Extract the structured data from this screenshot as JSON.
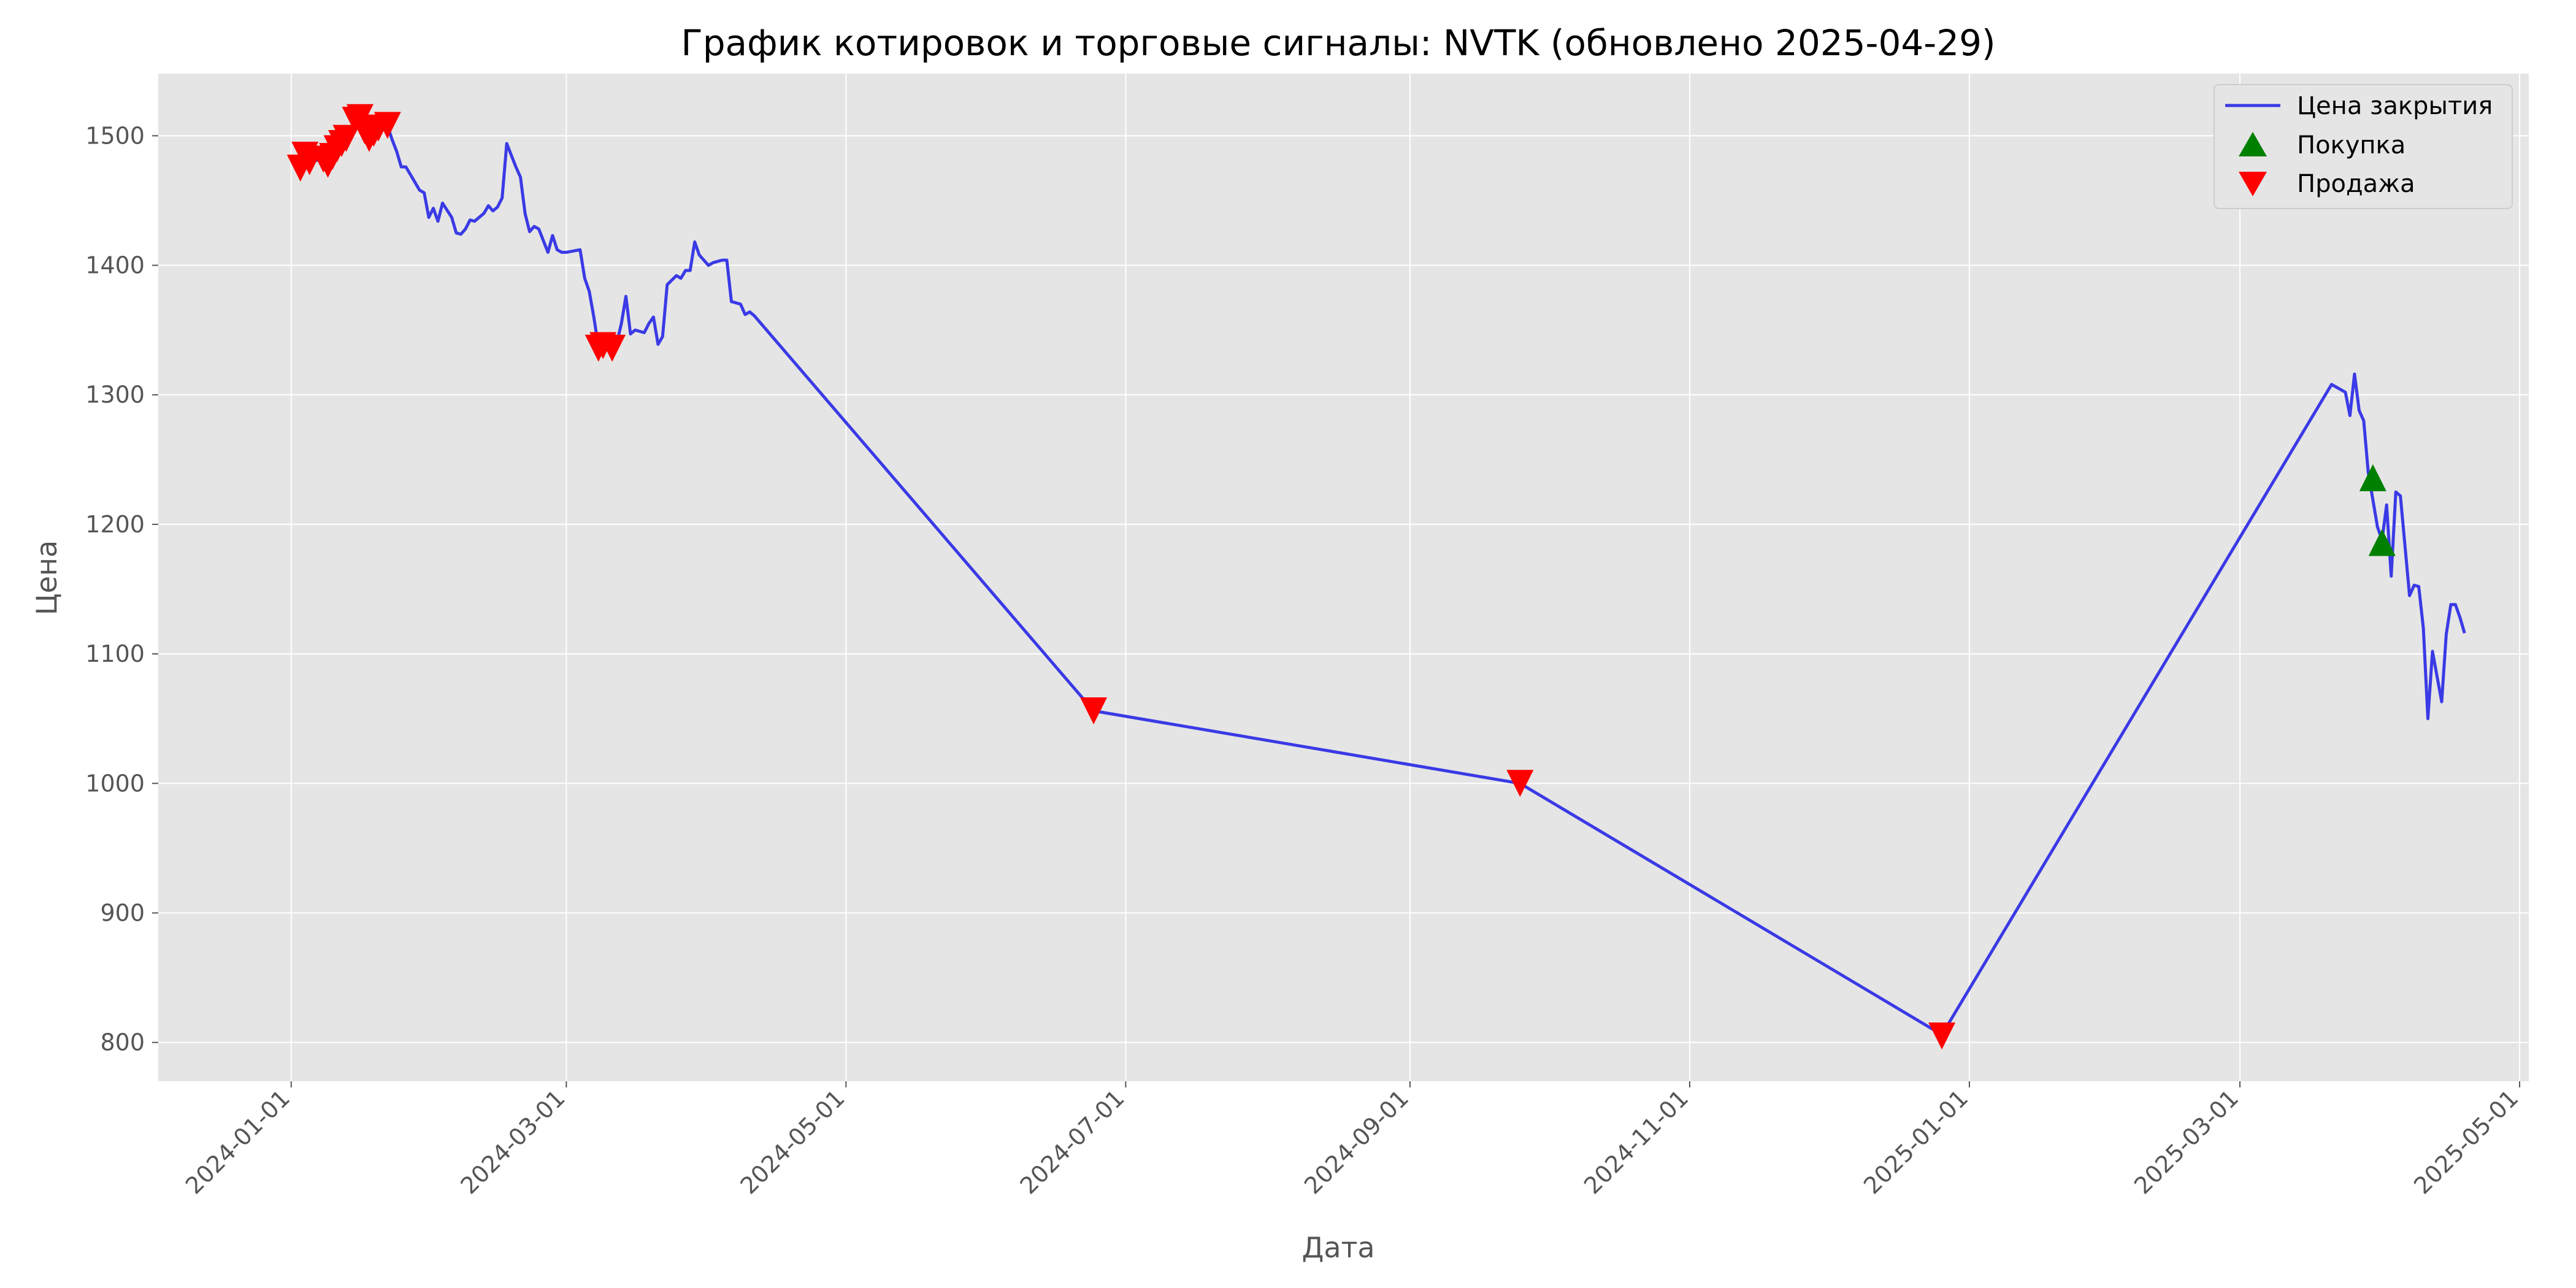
{
  "chart_data": {
    "type": "line",
    "title": "График котировок и торговые сигналы: NVTK (обновлено 2025-04-29)",
    "xlabel": "Дата",
    "ylabel": "Цена",
    "xlim": [
      "2023-12-03",
      "2025-05-03"
    ],
    "ylim": [
      770,
      1548
    ],
    "x_ticks": [
      "2024-01-01",
      "2024-03-01",
      "2024-05-01",
      "2024-07-01",
      "2024-09-01",
      "2024-11-01",
      "2025-01-01",
      "2025-03-01",
      "2025-05-01"
    ],
    "y_ticks": [
      800,
      900,
      1000,
      1100,
      1200,
      1300,
      1400,
      1500
    ],
    "grid": true,
    "legend_position": "top-right",
    "colors": {
      "background": "#e5e5e5",
      "grid": "#ffffff",
      "line": "#3a3ae6",
      "buy": "#008000",
      "sell": "#ff0000"
    },
    "series": [
      {
        "name": "Цена закрытия",
        "type": "line",
        "points": [
          [
            "2024-01-03",
            1478
          ],
          [
            "2024-01-04",
            1484
          ],
          [
            "2024-01-05",
            1480
          ],
          [
            "2024-01-08",
            1482
          ],
          [
            "2024-01-09",
            1478
          ],
          [
            "2024-01-10",
            1484
          ],
          [
            "2024-01-11",
            1490
          ],
          [
            "2024-01-12",
            1494
          ],
          [
            "2024-01-13",
            1498
          ],
          [
            "2024-01-15",
            1506
          ],
          [
            "2024-01-16",
            1514
          ],
          [
            "2024-01-17",
            1504
          ],
          [
            "2024-01-18",
            1496
          ],
          [
            "2024-01-19",
            1500
          ],
          [
            "2024-01-20",
            1506
          ],
          [
            "2024-01-22",
            1508
          ],
          [
            "2024-01-23",
            1497
          ],
          [
            "2024-01-24",
            1488
          ],
          [
            "2024-01-25",
            1476
          ],
          [
            "2024-01-26",
            1476
          ],
          [
            "2024-01-27",
            1470
          ],
          [
            "2024-01-29",
            1458
          ],
          [
            "2024-01-30",
            1456
          ],
          [
            "2024-01-31",
            1437
          ],
          [
            "2024-02-01",
            1444
          ],
          [
            "2024-02-02",
            1434
          ],
          [
            "2024-02-03",
            1448
          ],
          [
            "2024-02-05",
            1437
          ],
          [
            "2024-02-06",
            1425
          ],
          [
            "2024-02-07",
            1424
          ],
          [
            "2024-02-08",
            1428
          ],
          [
            "2024-02-09",
            1435
          ],
          [
            "2024-02-10",
            1434
          ],
          [
            "2024-02-12",
            1440
          ],
          [
            "2024-02-13",
            1446
          ],
          [
            "2024-02-14",
            1442
          ],
          [
            "2024-02-15",
            1445
          ],
          [
            "2024-02-16",
            1452
          ],
          [
            "2024-02-17",
            1494
          ],
          [
            "2024-02-19",
            1476
          ],
          [
            "2024-02-20",
            1468
          ],
          [
            "2024-02-21",
            1440
          ],
          [
            "2024-02-22",
            1426
          ],
          [
            "2024-02-23",
            1430
          ],
          [
            "2024-02-24",
            1428
          ],
          [
            "2024-02-26",
            1410
          ],
          [
            "2024-02-27",
            1423
          ],
          [
            "2024-02-28",
            1412
          ],
          [
            "2024-02-29",
            1410
          ],
          [
            "2024-03-01",
            1410
          ],
          [
            "2024-03-04",
            1412
          ],
          [
            "2024-03-05",
            1390
          ],
          [
            "2024-03-06",
            1380
          ],
          [
            "2024-03-07",
            1360
          ],
          [
            "2024-03-08",
            1337
          ],
          [
            "2024-03-09",
            1345
          ],
          [
            "2024-03-11",
            1333
          ],
          [
            "2024-03-12",
            1340
          ],
          [
            "2024-03-13",
            1355
          ],
          [
            "2024-03-14",
            1376
          ],
          [
            "2024-03-15",
            1347
          ],
          [
            "2024-03-16",
            1350
          ],
          [
            "2024-03-18",
            1348
          ],
          [
            "2024-03-19",
            1355
          ],
          [
            "2024-03-20",
            1360
          ],
          [
            "2024-03-21",
            1339
          ],
          [
            "2024-03-22",
            1345
          ],
          [
            "2024-03-23",
            1385
          ],
          [
            "2024-03-25",
            1392
          ],
          [
            "2024-03-26",
            1390
          ],
          [
            "2024-03-27",
            1396
          ],
          [
            "2024-03-28",
            1396
          ],
          [
            "2024-03-29",
            1418
          ],
          [
            "2024-03-30",
            1408
          ],
          [
            "2024-04-01",
            1400
          ],
          [
            "2024-04-02",
            1402
          ],
          [
            "2024-04-03",
            1403
          ],
          [
            "2024-04-04",
            1404
          ],
          [
            "2024-04-05",
            1404
          ],
          [
            "2024-04-06",
            1372
          ],
          [
            "2024-04-08",
            1370
          ],
          [
            "2024-04-09",
            1362
          ],
          [
            "2024-04-10",
            1364
          ],
          [
            "2024-04-11",
            1361
          ],
          [
            "2024-06-24",
            1056
          ],
          [
            "2024-09-25",
            1000
          ],
          [
            "2024-12-26",
            806
          ],
          [
            "2025-03-21",
            1308
          ],
          [
            "2025-03-22",
            1306
          ],
          [
            "2025-03-24",
            1302
          ],
          [
            "2025-03-25",
            1284
          ],
          [
            "2025-03-26",
            1316
          ],
          [
            "2025-03-27",
            1288
          ],
          [
            "2025-03-28",
            1280
          ],
          [
            "2025-03-29",
            1240
          ],
          [
            "2025-03-31",
            1198
          ],
          [
            "2025-04-01",
            1188
          ],
          [
            "2025-04-02",
            1215
          ],
          [
            "2025-04-03",
            1160
          ],
          [
            "2025-04-04",
            1225
          ],
          [
            "2025-04-05",
            1222
          ],
          [
            "2025-04-07",
            1145
          ],
          [
            "2025-04-08",
            1153
          ],
          [
            "2025-04-09",
            1152
          ],
          [
            "2025-04-10",
            1120
          ],
          [
            "2025-04-11",
            1050
          ],
          [
            "2025-04-12",
            1102
          ],
          [
            "2025-04-14",
            1063
          ],
          [
            "2025-04-15",
            1115
          ],
          [
            "2025-04-16",
            1138
          ],
          [
            "2025-04-17",
            1138
          ],
          [
            "2025-04-18",
            1128
          ],
          [
            "2025-04-19",
            1116
          ]
        ]
      },
      {
        "name": "Покупка",
        "type": "scatter",
        "marker": "triangle-up",
        "points": [
          [
            "2025-03-30",
            1236
          ],
          [
            "2025-04-01",
            1186
          ]
        ]
      },
      {
        "name": "Продажа",
        "type": "scatter",
        "marker": "triangle-down",
        "points": [
          [
            "2024-01-03",
            1475
          ],
          [
            "2024-01-04",
            1485
          ],
          [
            "2024-01-05",
            1480
          ],
          [
            "2024-01-08",
            1482
          ],
          [
            "2024-01-09",
            1478
          ],
          [
            "2024-01-10",
            1484
          ],
          [
            "2024-01-11",
            1490
          ],
          [
            "2024-01-12",
            1494
          ],
          [
            "2024-01-13",
            1498
          ],
          [
            "2024-01-15",
            1512
          ],
          [
            "2024-01-16",
            1514
          ],
          [
            "2024-01-17",
            1504
          ],
          [
            "2024-01-18",
            1498
          ],
          [
            "2024-01-19",
            1502
          ],
          [
            "2024-01-20",
            1506
          ],
          [
            "2024-01-22",
            1508
          ],
          [
            "2024-03-08",
            1336
          ],
          [
            "2024-03-09",
            1338
          ],
          [
            "2024-03-11",
            1336
          ],
          [
            "2024-06-24",
            1056
          ],
          [
            "2024-09-25",
            1000
          ],
          [
            "2024-12-26",
            805
          ]
        ]
      }
    ]
  }
}
